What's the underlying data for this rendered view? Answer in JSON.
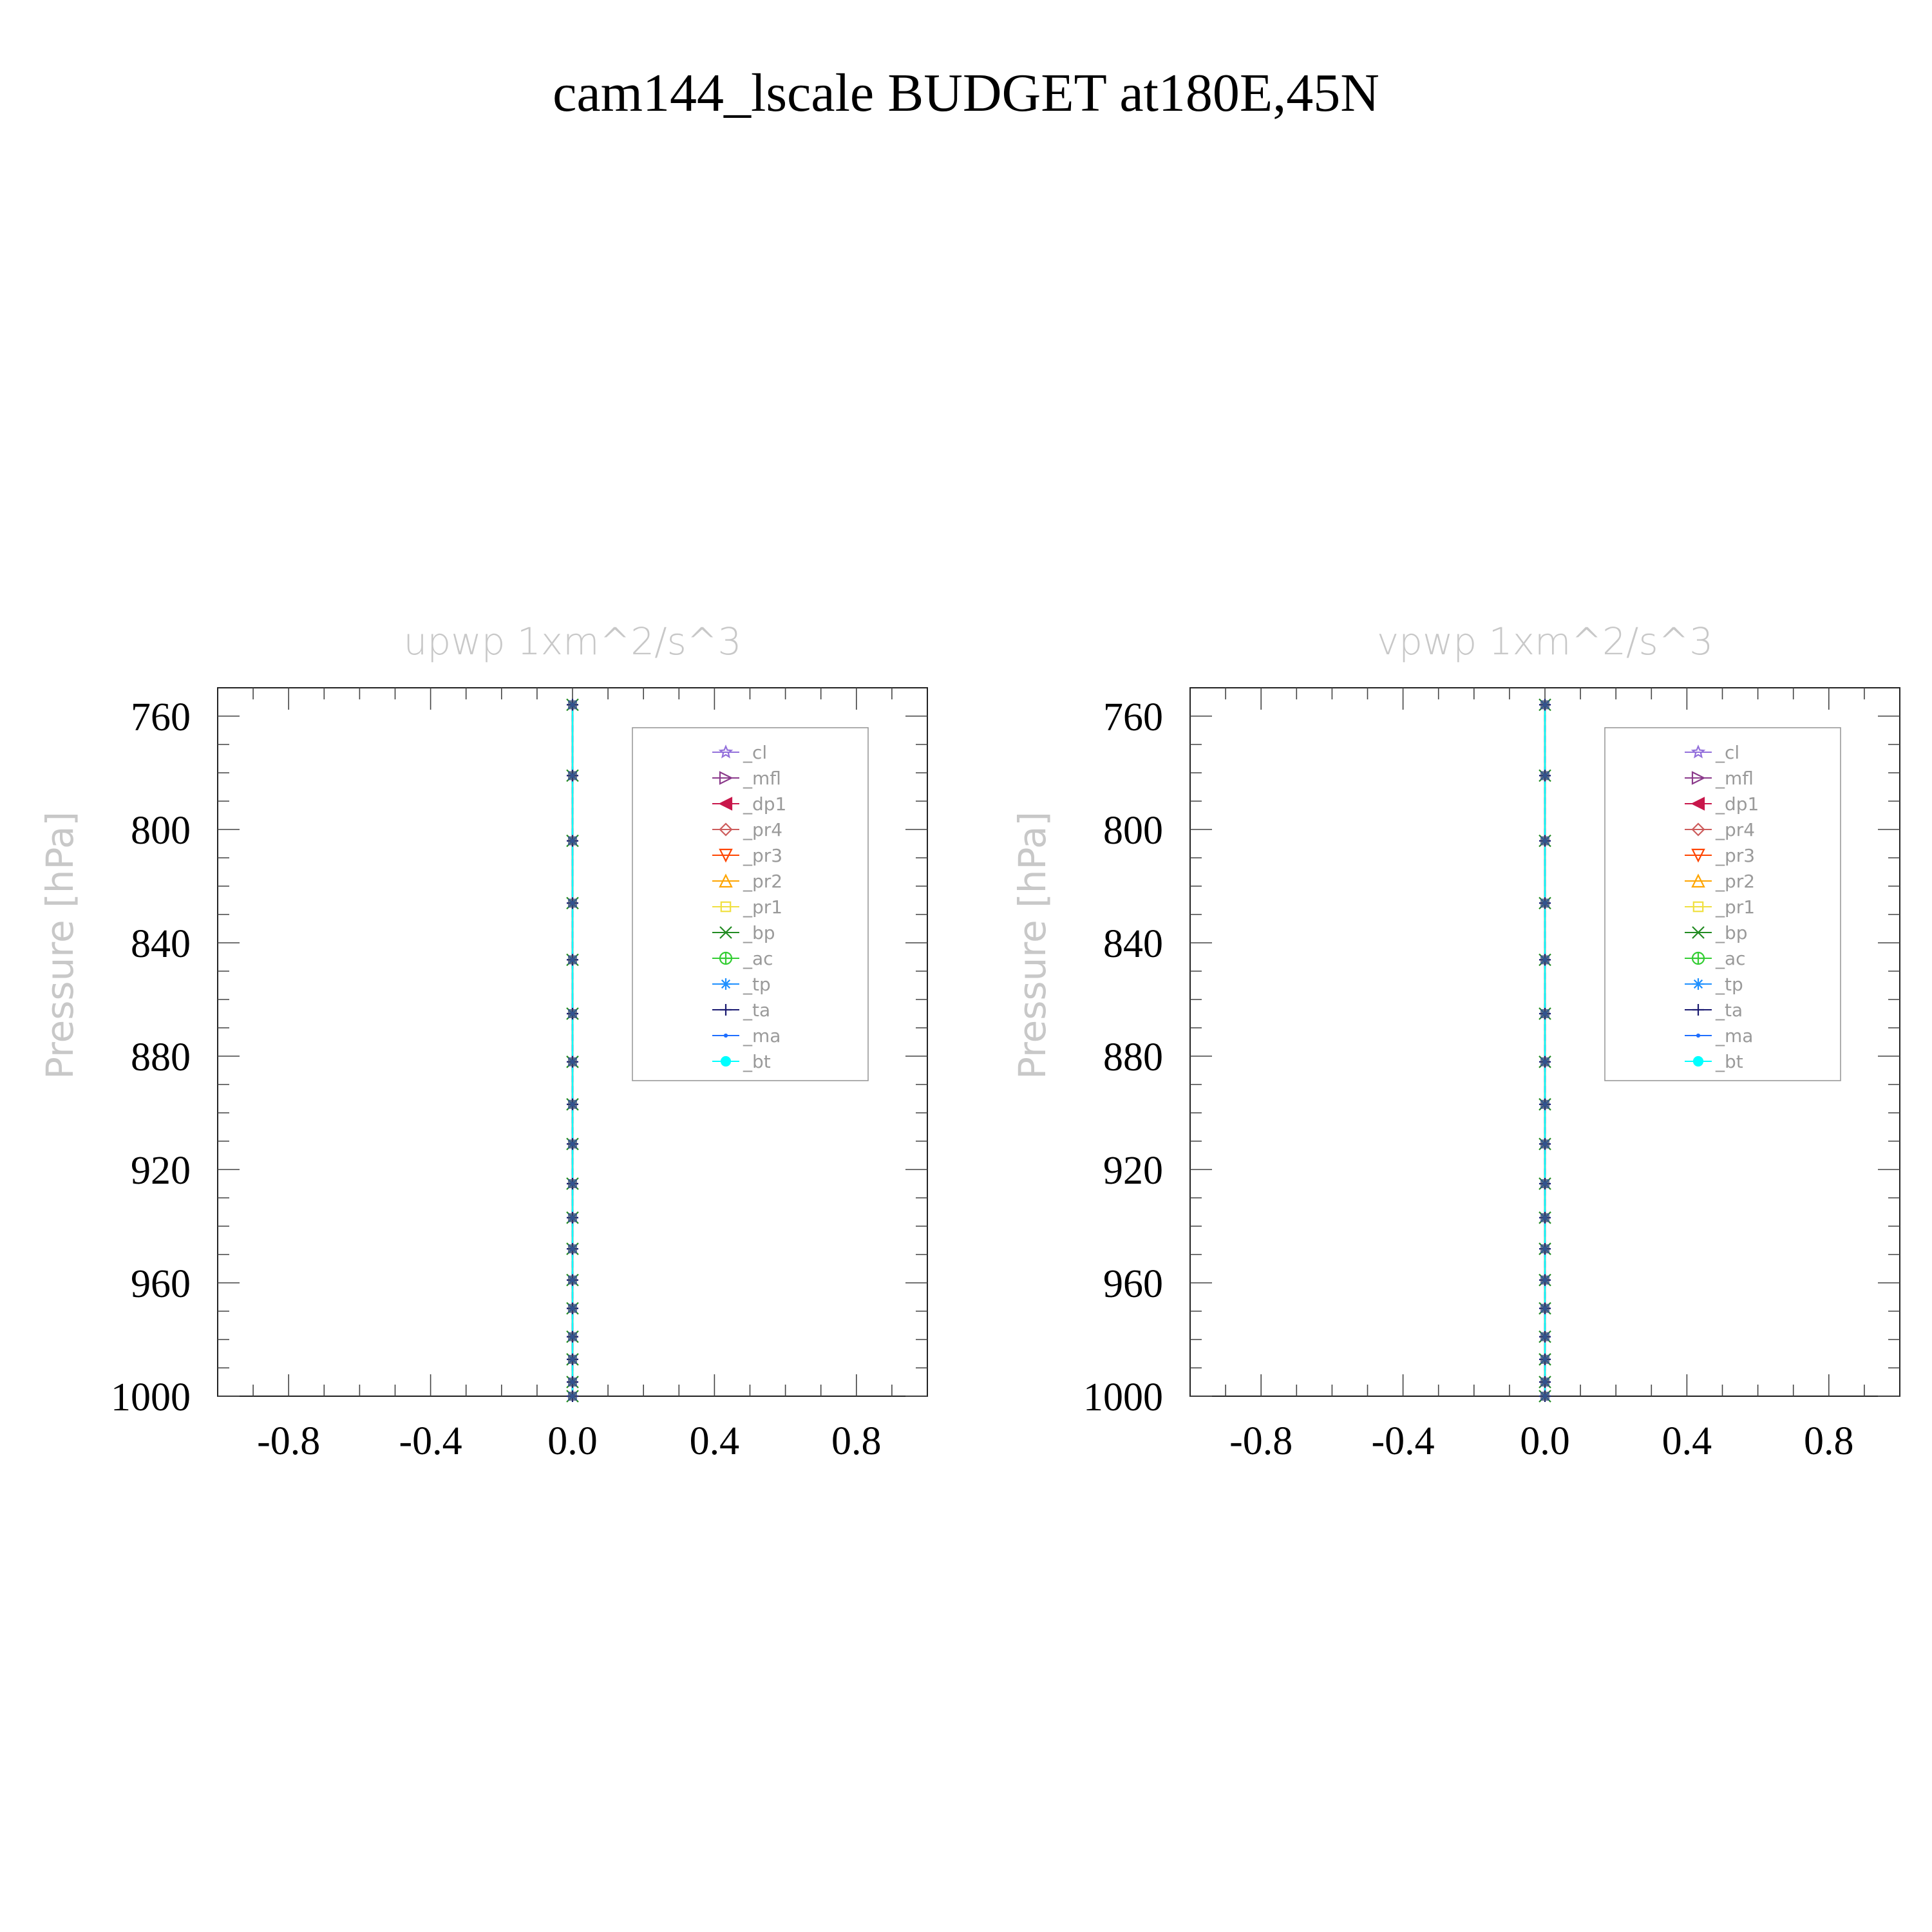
{
  "title": "cam144_lscale  BUDGET at180E,45N",
  "chart_data": [
    {
      "type": "line",
      "title": "upwp    1xm^2/s^3",
      "xlabel": "",
      "ylabel": "Pressure  [hPa]",
      "xlim": [
        -1.0,
        1.0
      ],
      "ylim": [
        1000,
        750
      ],
      "x_ticks": [
        "-0.8",
        "-0.4",
        "0.0",
        "0.4",
        "0.8"
      ],
      "y_ticks": [
        "760",
        "800",
        "840",
        "880",
        "920",
        "960",
        "1000"
      ],
      "levels": [
        756,
        781,
        804,
        826,
        846,
        865,
        882,
        897,
        911,
        925,
        937,
        948,
        959,
        969,
        979,
        987,
        995,
        1000
      ],
      "series": [
        {
          "name": "_cl",
          "color": "#9370db",
          "marker": "star",
          "value": 0.0
        },
        {
          "name": "_mfl",
          "color": "#8b3a8b",
          "marker": "tri-right",
          "value": 0.0
        },
        {
          "name": "_dp1",
          "color": "#c8174b",
          "marker": "tri-left",
          "value": 0.0
        },
        {
          "name": "_pr4",
          "color": "#cd5c5c",
          "marker": "diamond",
          "value": 0.0
        },
        {
          "name": "_pr3",
          "color": "#ff4500",
          "marker": "tri-down",
          "value": 0.0
        },
        {
          "name": "_pr2",
          "color": "#ffa500",
          "marker": "tri-up",
          "value": 0.0
        },
        {
          "name": "_pr1",
          "color": "#f0e040",
          "marker": "square",
          "value": 0.0
        },
        {
          "name": "_bp",
          "color": "#228b22",
          "marker": "x",
          "value": 0.0
        },
        {
          "name": "_ac",
          "color": "#32cd32",
          "marker": "circle-plus",
          "value": 0.0
        },
        {
          "name": "_tp",
          "color": "#1e90ff",
          "marker": "asterisk",
          "value": 0.0
        },
        {
          "name": "_ta",
          "color": "#191970",
          "marker": "plus",
          "value": 0.0
        },
        {
          "name": "_ma",
          "color": "#1e6eff",
          "marker": "dot",
          "value": 0.0
        },
        {
          "name": "_bt",
          "color": "#00ffff",
          "marker": "filled-circle",
          "value": 0.0
        }
      ]
    },
    {
      "type": "line",
      "title": "vpwp    1xm^2/s^3",
      "xlabel": "",
      "ylabel": "Pressure  [hPa]",
      "xlim": [
        -1.0,
        1.0
      ],
      "ylim": [
        1000,
        750
      ],
      "x_ticks": [
        "-0.8",
        "-0.4",
        "0.0",
        "0.4",
        "0.8"
      ],
      "y_ticks": [
        "760",
        "800",
        "840",
        "880",
        "920",
        "960",
        "1000"
      ],
      "levels": [
        756,
        781,
        804,
        826,
        846,
        865,
        882,
        897,
        911,
        925,
        937,
        948,
        959,
        969,
        979,
        987,
        995,
        1000
      ],
      "series": [
        {
          "name": "_cl",
          "color": "#9370db",
          "marker": "star",
          "value": 0.0
        },
        {
          "name": "_mfl",
          "color": "#8b3a8b",
          "marker": "tri-right",
          "value": 0.0
        },
        {
          "name": "_dp1",
          "color": "#c8174b",
          "marker": "tri-left",
          "value": 0.0
        },
        {
          "name": "_pr4",
          "color": "#cd5c5c",
          "marker": "diamond",
          "value": 0.0
        },
        {
          "name": "_pr3",
          "color": "#ff4500",
          "marker": "tri-down",
          "value": 0.0
        },
        {
          "name": "_pr2",
          "color": "#ffa500",
          "marker": "tri-up",
          "value": 0.0
        },
        {
          "name": "_pr1",
          "color": "#f0e040",
          "marker": "square",
          "value": 0.0
        },
        {
          "name": "_bp",
          "color": "#228b22",
          "marker": "x",
          "value": 0.0
        },
        {
          "name": "_ac",
          "color": "#32cd32",
          "marker": "circle-plus",
          "value": 0.0
        },
        {
          "name": "_tp",
          "color": "#1e90ff",
          "marker": "asterisk",
          "value": 0.0
        },
        {
          "name": "_ta",
          "color": "#191970",
          "marker": "plus",
          "value": 0.0
        },
        {
          "name": "_ma",
          "color": "#1e6eff",
          "marker": "dot",
          "value": 0.0
        },
        {
          "name": "_bt",
          "color": "#00ffff",
          "marker": "filled-circle",
          "value": 0.0
        }
      ]
    }
  ]
}
